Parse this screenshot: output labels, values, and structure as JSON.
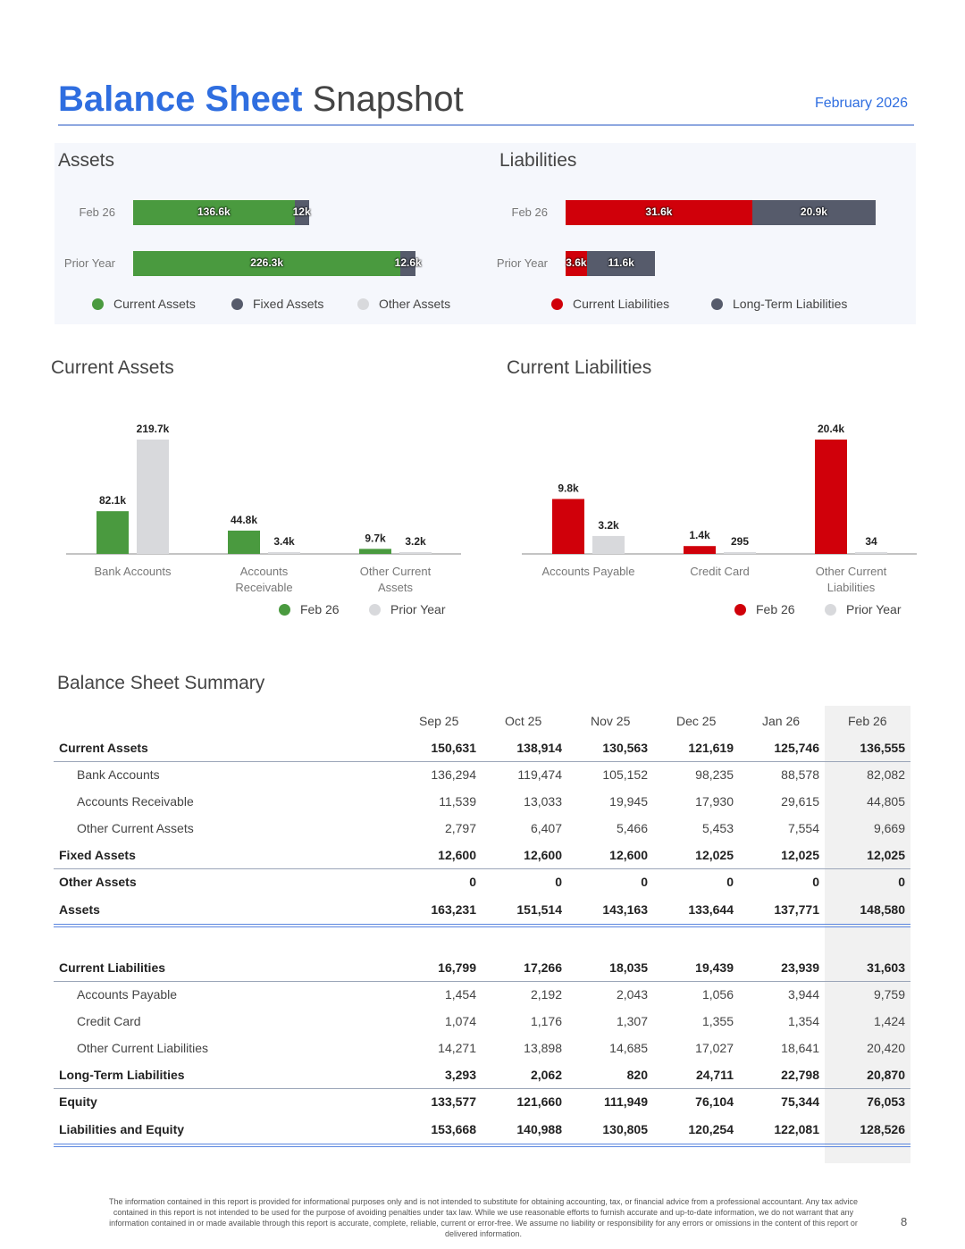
{
  "header": {
    "title_bold": "Balance Sheet",
    "title_light": "Snapshot",
    "date": "February 2026"
  },
  "assets_chart": {
    "title": "Assets",
    "rows": [
      {
        "label": "Feb 26",
        "segments": [
          {
            "name": "Current Assets",
            "value": 136.6,
            "label": "136.6k"
          },
          {
            "name": "Fixed Assets",
            "value": 12.0,
            "label": "12k"
          }
        ]
      },
      {
        "label": "Prior Year",
        "segments": [
          {
            "name": "Current Assets",
            "value": 226.3,
            "label": "226.3k"
          },
          {
            "name": "Fixed Assets",
            "value": 12.6,
            "label": "12.6k"
          }
        ]
      }
    ],
    "legend": [
      {
        "label": "Current Assets",
        "color": "#4a9a3f"
      },
      {
        "label": "Fixed Assets",
        "color": "#565b6b"
      },
      {
        "label": "Other Assets",
        "color": "#d8d9dc"
      }
    ]
  },
  "liabilities_chart": {
    "title": "Liabilities",
    "rows": [
      {
        "label": "Feb 26",
        "segments": [
          {
            "name": "Current Liabilities",
            "value": 31.6,
            "label": "31.6k"
          },
          {
            "name": "Long-Term Liabilities",
            "value": 20.9,
            "label": "20.9k"
          }
        ]
      },
      {
        "label": "Prior Year",
        "segments": [
          {
            "name": "Current Liabilities",
            "value": 3.6,
            "label": "3.6k"
          },
          {
            "name": "Long-Term Liabilities",
            "value": 11.6,
            "label": "11.6k"
          }
        ]
      }
    ],
    "legend": [
      {
        "label": "Current Liabilities",
        "color": "#d0000a"
      },
      {
        "label": "Long-Term Liabilities",
        "color": "#565b6b"
      }
    ]
  },
  "chart_data": [
    {
      "type": "bar",
      "title": "Current Assets",
      "categories": [
        "Bank Accounts",
        "Accounts Receivable",
        "Other Current Assets"
      ],
      "category_lines": [
        [
          "Bank Accounts"
        ],
        [
          "Accounts",
          "Receivable"
        ],
        [
          "Other Current",
          "Assets"
        ]
      ],
      "series": [
        {
          "name": "Feb 26",
          "values": [
            82.1,
            44.8,
            9.7
          ],
          "labels": [
            "82.1k",
            "44.8k",
            "9.7k"
          ],
          "color": "#4a9a3f"
        },
        {
          "name": "Prior Year",
          "values": [
            219.7,
            3.4,
            3.2
          ],
          "labels": [
            "219.7k",
            "3.4k",
            "3.2k"
          ],
          "color": "#d8d9dc"
        }
      ],
      "ylim": [
        0,
        219.7
      ]
    },
    {
      "type": "bar",
      "title": "Current Liabilities",
      "categories": [
        "Accounts Payable",
        "Credit Card",
        "Other Current Liabilities"
      ],
      "category_lines": [
        [
          "Accounts Payable"
        ],
        [
          "Credit Card"
        ],
        [
          "Other Current",
          "Liabilities"
        ]
      ],
      "series": [
        {
          "name": "Feb 26",
          "values": [
            9.8,
            1.4,
            20.4
          ],
          "labels": [
            "9.8k",
            "1.4k",
            "20.4k"
          ],
          "color": "#d0000a"
        },
        {
          "name": "Prior Year",
          "values": [
            3.2,
            0.295,
            0.034
          ],
          "labels": [
            "3.2k",
            "295",
            "34"
          ],
          "color": "#d8d9dc"
        }
      ],
      "ylim": [
        0,
        20.4
      ]
    },
    {
      "type": "bar",
      "title": "Assets",
      "stacked": true,
      "orientation": "horizontal",
      "categories": [
        "Feb 26",
        "Prior Year"
      ],
      "series": [
        {
          "name": "Current Assets",
          "values": [
            136.6,
            226.3
          ]
        },
        {
          "name": "Fixed Assets",
          "values": [
            12.0,
            12.6
          ]
        },
        {
          "name": "Other Assets",
          "values": [
            0,
            0
          ]
        }
      ]
    },
    {
      "type": "bar",
      "title": "Liabilities",
      "stacked": true,
      "orientation": "horizontal",
      "categories": [
        "Feb 26",
        "Prior Year"
      ],
      "series": [
        {
          "name": "Current Liabilities",
          "values": [
            31.6,
            3.6
          ]
        },
        {
          "name": "Long-Term Liabilities",
          "values": [
            20.9,
            11.6
          ]
        }
      ]
    }
  ],
  "summary": {
    "title": "Balance Sheet Summary",
    "columns": [
      "Sep 25",
      "Oct 25",
      "Nov 25",
      "Dec 25",
      "Jan 26",
      "Feb 26"
    ],
    "rows": [
      {
        "name": "Current Assets",
        "style": "bold",
        "values": [
          "150,631",
          "138,914",
          "130,563",
          "121,619",
          "125,746",
          "136,555"
        ]
      },
      {
        "name": "Bank Accounts",
        "style": "sub",
        "values": [
          "136,294",
          "119,474",
          "105,152",
          "98,235",
          "88,578",
          "82,082"
        ]
      },
      {
        "name": "Accounts Receivable",
        "style": "sub",
        "values": [
          "11,539",
          "13,033",
          "19,945",
          "17,930",
          "29,615",
          "44,805"
        ]
      },
      {
        "name": "Other Current Assets",
        "style": "sub",
        "values": [
          "2,797",
          "6,407",
          "5,466",
          "5,453",
          "7,554",
          "9,669"
        ]
      },
      {
        "name": "Fixed Assets",
        "style": "bold",
        "values": [
          "12,600",
          "12,600",
          "12,600",
          "12,025",
          "12,025",
          "12,025"
        ]
      },
      {
        "name": "Other Assets",
        "style": "bold",
        "values": [
          "0",
          "0",
          "0",
          "0",
          "0",
          "0"
        ]
      },
      {
        "name": "Assets",
        "style": "total",
        "values": [
          "163,231",
          "151,514",
          "143,163",
          "133,644",
          "137,771",
          "148,580"
        ]
      },
      {
        "name": "Current Liabilities",
        "style": "bold",
        "values": [
          "16,799",
          "17,266",
          "18,035",
          "19,439",
          "23,939",
          "31,603"
        ]
      },
      {
        "name": "Accounts Payable",
        "style": "sub",
        "values": [
          "1,454",
          "2,192",
          "2,043",
          "1,056",
          "3,944",
          "9,759"
        ]
      },
      {
        "name": "Credit Card",
        "style": "sub",
        "values": [
          "1,074",
          "1,176",
          "1,307",
          "1,355",
          "1,354",
          "1,424"
        ]
      },
      {
        "name": "Other Current Liabilities",
        "style": "sub",
        "values": [
          "14,271",
          "13,898",
          "14,685",
          "17,027",
          "18,641",
          "20,420"
        ]
      },
      {
        "name": "Long-Term Liabilities",
        "style": "bold",
        "values": [
          "3,293",
          "2,062",
          "820",
          "24,711",
          "22,798",
          "20,870"
        ]
      },
      {
        "name": "Equity",
        "style": "bold",
        "values": [
          "133,577",
          "121,660",
          "111,949",
          "76,104",
          "75,344",
          "76,053"
        ]
      },
      {
        "name": "Liabilities and Equity",
        "style": "total",
        "values": [
          "153,668",
          "140,988",
          "130,805",
          "120,254",
          "122,081",
          "128,526"
        ]
      }
    ]
  },
  "footer": {
    "disclaimer": "The information contained in this report is provided for informational purposes only and is not intended to substitute for obtaining accounting, tax, or financial advice from a professional accountant. Any tax advice contained in this report is not intended to be used for the purpose of avoiding penalties under tax law. While we use reasonable efforts to furnish accurate and up-to-date information, we do not warrant that any information contained in or made available through this report is accurate, complete, reliable, current or error-free. We assume no liability or responsibility for any errors or omissions in the content of this report or delivered information.",
    "page_number": "8"
  }
}
